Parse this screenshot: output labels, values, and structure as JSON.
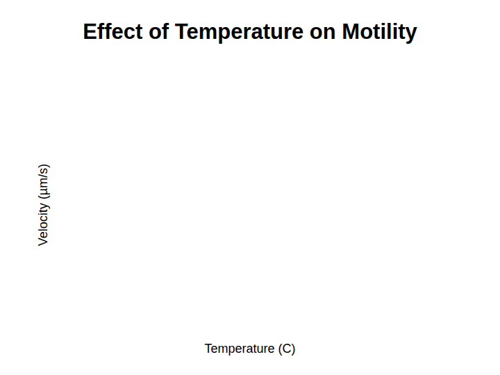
{
  "chart_data": {
    "type": "scatter",
    "title": "Effect of Temperature on Motility",
    "x_label": "Temperature (C)",
    "y_label": "Velocity (µm/s)",
    "x": [],
    "values": [],
    "grid": false,
    "tick_labels": false
  }
}
